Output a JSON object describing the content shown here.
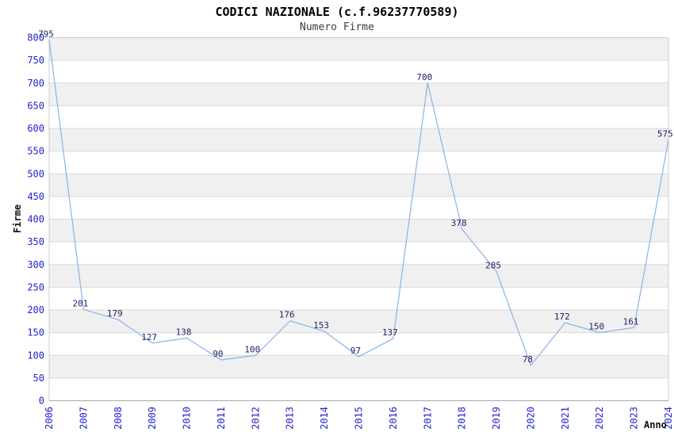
{
  "header": {
    "title": "CODICI NAZIONALE (c.f.96237770589)",
    "subtitle": "Numero Firme"
  },
  "chart_data": {
    "type": "line",
    "title": "CODICI NAZIONALE (c.f.96237770589)",
    "subtitle": "Numero Firme",
    "xlabel": "Anno",
    "ylabel": "Firme",
    "categories": [
      "2006",
      "2007",
      "2008",
      "2009",
      "2010",
      "2011",
      "2012",
      "2013",
      "2014",
      "2015",
      "2016",
      "2017",
      "2018",
      "2019",
      "2020",
      "2021",
      "2022",
      "2023",
      "2024"
    ],
    "values": [
      795,
      201,
      179,
      127,
      138,
      90,
      100,
      176,
      153,
      97,
      137,
      700,
      378,
      285,
      78,
      172,
      150,
      161,
      575
    ],
    "ylim": [
      0,
      800
    ],
    "yticks": [
      0,
      50,
      100,
      150,
      200,
      250,
      300,
      350,
      400,
      450,
      500,
      550,
      600,
      650,
      700,
      750,
      800
    ],
    "grid": "horizontal-alternating-bands",
    "legend": "none",
    "colors": {
      "line": "#86b4e7",
      "axis_tick_label": "#2222cc",
      "value_label": "#222266",
      "band_shaded": "#f0f0f0",
      "band_plain": "#ffffff",
      "gridline": "#d9d9d9",
      "plot_border": "#cccccc",
      "bottom_axis": "#a8a8a8",
      "title": "#000000",
      "subtitle": "#3f3f3f"
    }
  }
}
